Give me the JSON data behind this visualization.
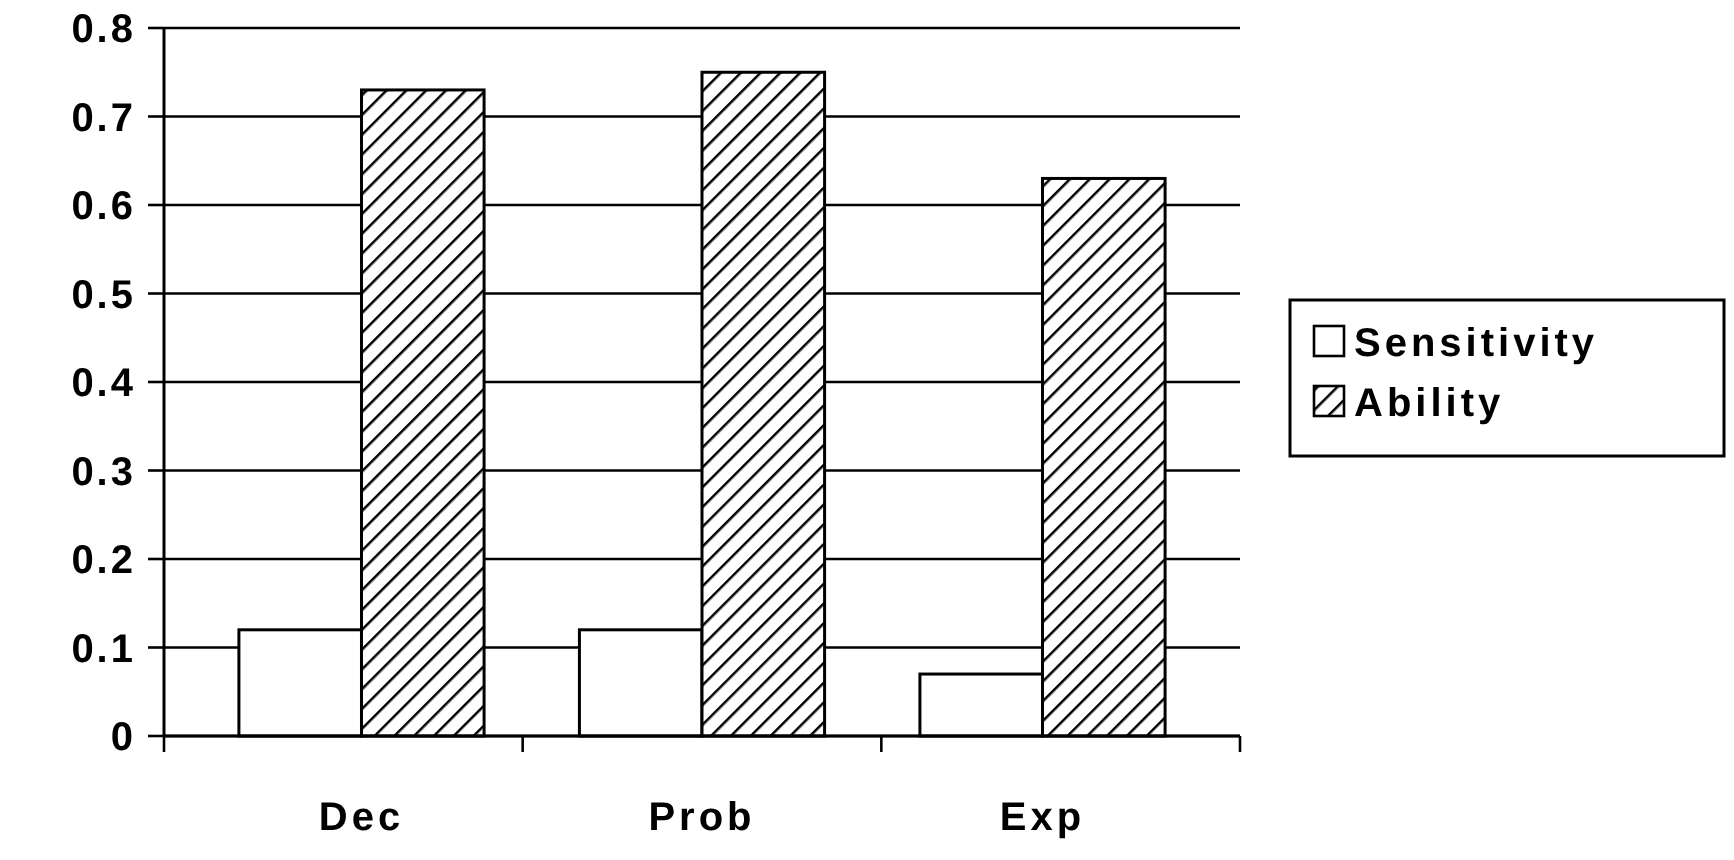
{
  "chart_data": {
    "type": "bar",
    "categories": [
      "Dec",
      "Prob",
      "Exp"
    ],
    "series": [
      {
        "name": "Sensitivity",
        "color": "#ffffff",
        "values": [
          0.12,
          0.12,
          0.07
        ]
      },
      {
        "name": "Ability",
        "color": "#000000",
        "values": [
          0.73,
          0.75,
          0.63
        ]
      }
    ],
    "ylim": [
      0,
      0.8
    ],
    "yticks": [
      0,
      0.1,
      0.2,
      0.3,
      0.4,
      0.5,
      0.6,
      0.7,
      0.8
    ],
    "grid": "y",
    "legend": "right"
  }
}
